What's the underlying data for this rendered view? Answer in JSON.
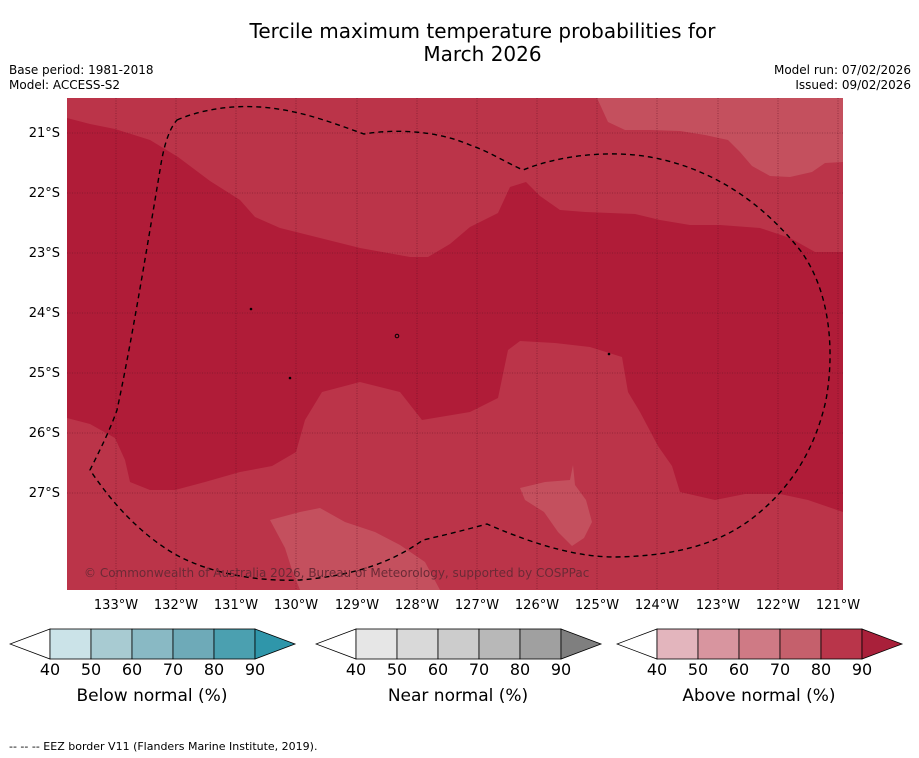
{
  "title_line1": "Tercile maximum temperature probabilities for",
  "title_line2": "March 2026",
  "base_period": "Base period: 1981-2018",
  "model": "Model: ACCESS-S2",
  "model_run": "Model run: 07/02/2026",
  "issued": "Issued: 09/02/2026",
  "lat_labels": [
    "21°S",
    "22°S",
    "23°S",
    "24°S",
    "25°S",
    "26°S",
    "27°S"
  ],
  "lon_labels": [
    "133°W",
    "132°W",
    "131°W",
    "130°W",
    "129°W",
    "128°W",
    "127°W",
    "126°W",
    "125°W",
    "124°W",
    "123°W",
    "122°W",
    "121°W"
  ],
  "copyright": "© Commonwealth of Australia 2026, Bureau of Meteorology, supported by COSPPac",
  "colorbars": [
    {
      "title": "Below normal (%)",
      "ticks": [
        "40",
        "50",
        "60",
        "70",
        "80",
        "90"
      ],
      "colors": [
        "#ffffff",
        "#cbe3e8",
        "#a8cbd2",
        "#89b9c4",
        "#6eaab8",
        "#4ba0b0",
        "#2f96aa"
      ]
    },
    {
      "title": "Near normal (%)",
      "ticks": [
        "40",
        "50",
        "60",
        "70",
        "80",
        "90"
      ],
      "colors": [
        "#ffffff",
        "#e6e6e6",
        "#d9d9d9",
        "#cccccc",
        "#b8b8b8",
        "#a0a0a0",
        "#7f7f7f"
      ]
    },
    {
      "title": "Above normal (%)",
      "ticks": [
        "40",
        "50",
        "60",
        "70",
        "80",
        "90"
      ],
      "colors": [
        "#ffffff",
        "#e3b5bd",
        "#d8959f",
        "#cf7a85",
        "#c5606c",
        "#b9354a",
        "#a9203a"
      ]
    }
  ],
  "footnote": "--  --  -- EEZ border V11 (Flanders Marine Institute, 2019).",
  "map_colors": {
    "p80": "#bb3449",
    "p90": "#b01c38",
    "p70": "#c4505e"
  }
}
